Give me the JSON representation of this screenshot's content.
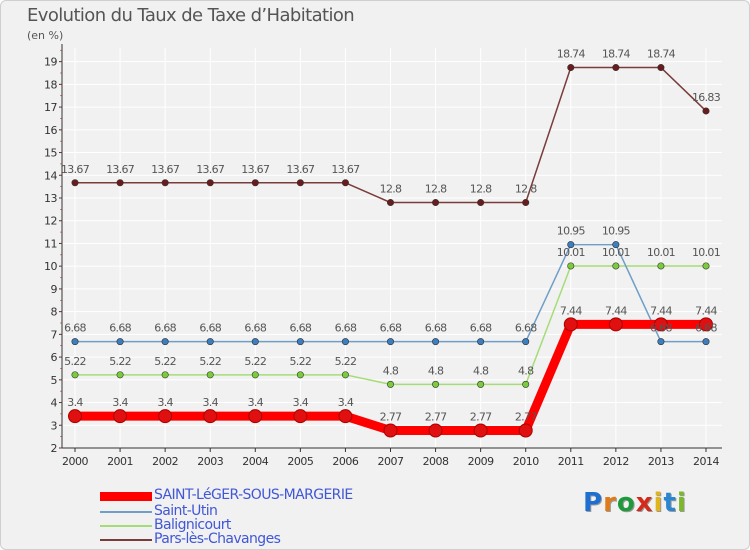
{
  "title": "Evolution du Taux de Taxe d’Habitation",
  "unit": "(en %)",
  "colors": {
    "background": "#f1f1f1",
    "grid": "#ffffff",
    "axis": "#333333",
    "label": "#555555",
    "legend_text": "#4057d6"
  },
  "logo": {
    "letters": [
      "P",
      "r",
      "o",
      "x",
      "i",
      "t",
      "i"
    ],
    "colors": [
      "#1f6fd0",
      "#e07b1a",
      "#1f9a3a",
      "#d42a1a",
      "#e0b41a",
      "#2a86d0",
      "#7bb82a"
    ]
  },
  "chart_data": {
    "type": "line",
    "title": "Evolution du Taux de Taxe d’Habitation",
    "ylabel": "(en %)",
    "xlabel": "",
    "ylim": [
      2,
      19.6
    ],
    "yticks": [
      "2",
      "3",
      "4",
      "5",
      "6",
      "7",
      "8",
      "9",
      "10",
      "11",
      "12",
      "13",
      "14",
      "15",
      "16",
      "17",
      "18",
      "19"
    ],
    "categories": [
      "2000",
      "2001",
      "2002",
      "2003",
      "2004",
      "2005",
      "2006",
      "2007",
      "2008",
      "2009",
      "2010",
      "2011",
      "2012",
      "2013",
      "2014"
    ],
    "series": [
      {
        "name": "SAINT-LéGER-SOUS-MARGERIE",
        "color": "#ff0000",
        "marker": "#e01010",
        "thick": true,
        "values": [
          3.4,
          3.4,
          3.4,
          3.4,
          3.4,
          3.4,
          3.4,
          2.77,
          2.77,
          2.77,
          2.77,
          7.44,
          7.44,
          7.44,
          7.44
        ],
        "labels": [
          "3.4",
          "3.4",
          "3.4",
          "3.4",
          "3.4",
          "3.4",
          "3.4",
          "2.77",
          "2.77",
          "2.77",
          "2.77",
          "7.44",
          "7.44",
          "7.44",
          "7.44"
        ]
      },
      {
        "name": "Saint-Utin",
        "color": "#6f9ec8",
        "marker": "#3c7fc0",
        "thick": false,
        "values": [
          6.68,
          6.68,
          6.68,
          6.68,
          6.68,
          6.68,
          6.68,
          6.68,
          6.68,
          6.68,
          6.68,
          10.95,
          10.95,
          6.68,
          6.68
        ],
        "labels": [
          "6.68",
          "6.68",
          "6.68",
          "6.68",
          "6.68",
          "6.68",
          "6.68",
          "6.68",
          "6.68",
          "6.68",
          "6.68",
          "10.95",
          "10.95",
          "6.68",
          "6.68"
        ]
      },
      {
        "name": "Balignicourt",
        "color": "#a6dc78",
        "marker": "#7acc3a",
        "thick": false,
        "values": [
          5.22,
          5.22,
          5.22,
          5.22,
          5.22,
          5.22,
          5.22,
          4.8,
          4.8,
          4.8,
          4.8,
          10.01,
          10.01,
          10.01,
          10.01
        ],
        "labels": [
          "5.22",
          "5.22",
          "5.22",
          "5.22",
          "5.22",
          "5.22",
          "5.22",
          "4.8",
          "4.8",
          "4.8",
          "4.8",
          "10.01",
          "10.01",
          "10.01",
          "10.01"
        ]
      },
      {
        "name": "Pars-lès-Chavanges",
        "color": "#7a3b3b",
        "marker": "#6a1c1c",
        "thick": false,
        "values": [
          13.67,
          13.67,
          13.67,
          13.67,
          13.67,
          13.67,
          13.67,
          12.8,
          12.8,
          12.8,
          12.8,
          18.74,
          18.74,
          18.74,
          16.83
        ],
        "labels": [
          "13.67",
          "13.67",
          "13.67",
          "13.67",
          "13.67",
          "13.67",
          "13.67",
          "12.8",
          "12.8",
          "12.8",
          "12.8",
          "18.74",
          "18.74",
          "18.74",
          "16.83"
        ]
      }
    ]
  }
}
